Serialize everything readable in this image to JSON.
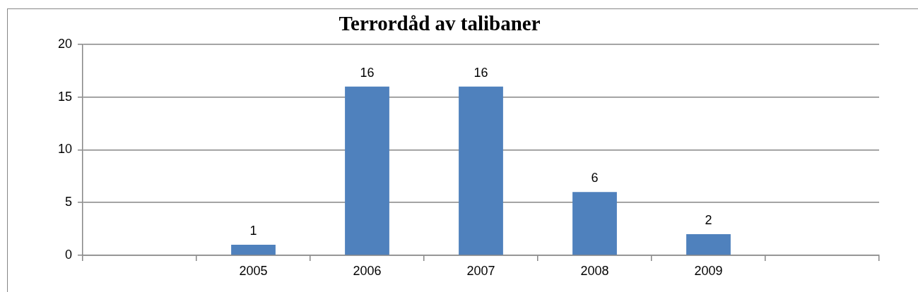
{
  "chart_data": {
    "type": "bar",
    "title": "Terrordåd av talibaner",
    "categories": [
      null,
      "2005",
      "2006",
      "2007",
      "2008",
      "2009",
      null
    ],
    "values": [
      null,
      1,
      16,
      16,
      6,
      2,
      null
    ],
    "color": "#4f81bd",
    "ylim": [
      0,
      20
    ],
    "yticks": [
      0,
      5,
      10,
      15,
      20
    ],
    "grid": "y",
    "data_labels": true
  }
}
